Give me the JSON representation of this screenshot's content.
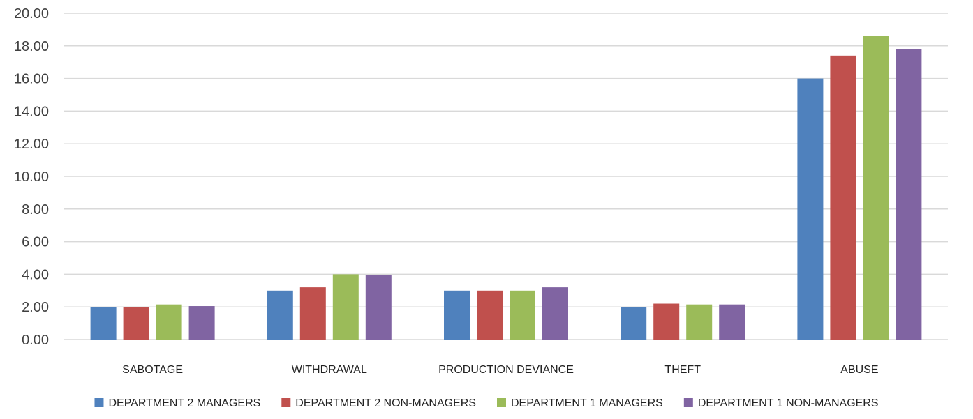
{
  "chart_data": {
    "type": "bar",
    "title": "",
    "xlabel": "",
    "ylabel": "",
    "ylim": [
      0,
      20
    ],
    "ytick_step": 2,
    "ytick_format": "0.00",
    "grid": true,
    "legend_position": "bottom",
    "categories": [
      "SABOTAGE",
      "WITHDRAWAL",
      "PRODUCTION DEVIANCE",
      "THEFT",
      "ABUSE"
    ],
    "series": [
      {
        "name": "DEPARTMENT 2 MANAGERS",
        "color": "#4F81BD",
        "values": [
          2.0,
          3.0,
          3.0,
          2.0,
          16.0
        ]
      },
      {
        "name": "DEPARTMENT 2 NON-MANAGERS",
        "color": "#C0504D",
        "values": [
          2.0,
          3.2,
          3.0,
          2.2,
          17.4
        ]
      },
      {
        "name": "DEPARTMENT 1 MANAGERS",
        "color": "#9BBB59",
        "values": [
          2.15,
          4.0,
          3.0,
          2.15,
          18.6
        ]
      },
      {
        "name": "DEPARTMENT 1 NON-MANAGERS",
        "color": "#8064A2",
        "values": [
          2.05,
          3.95,
          3.2,
          2.15,
          17.8
        ]
      }
    ]
  }
}
